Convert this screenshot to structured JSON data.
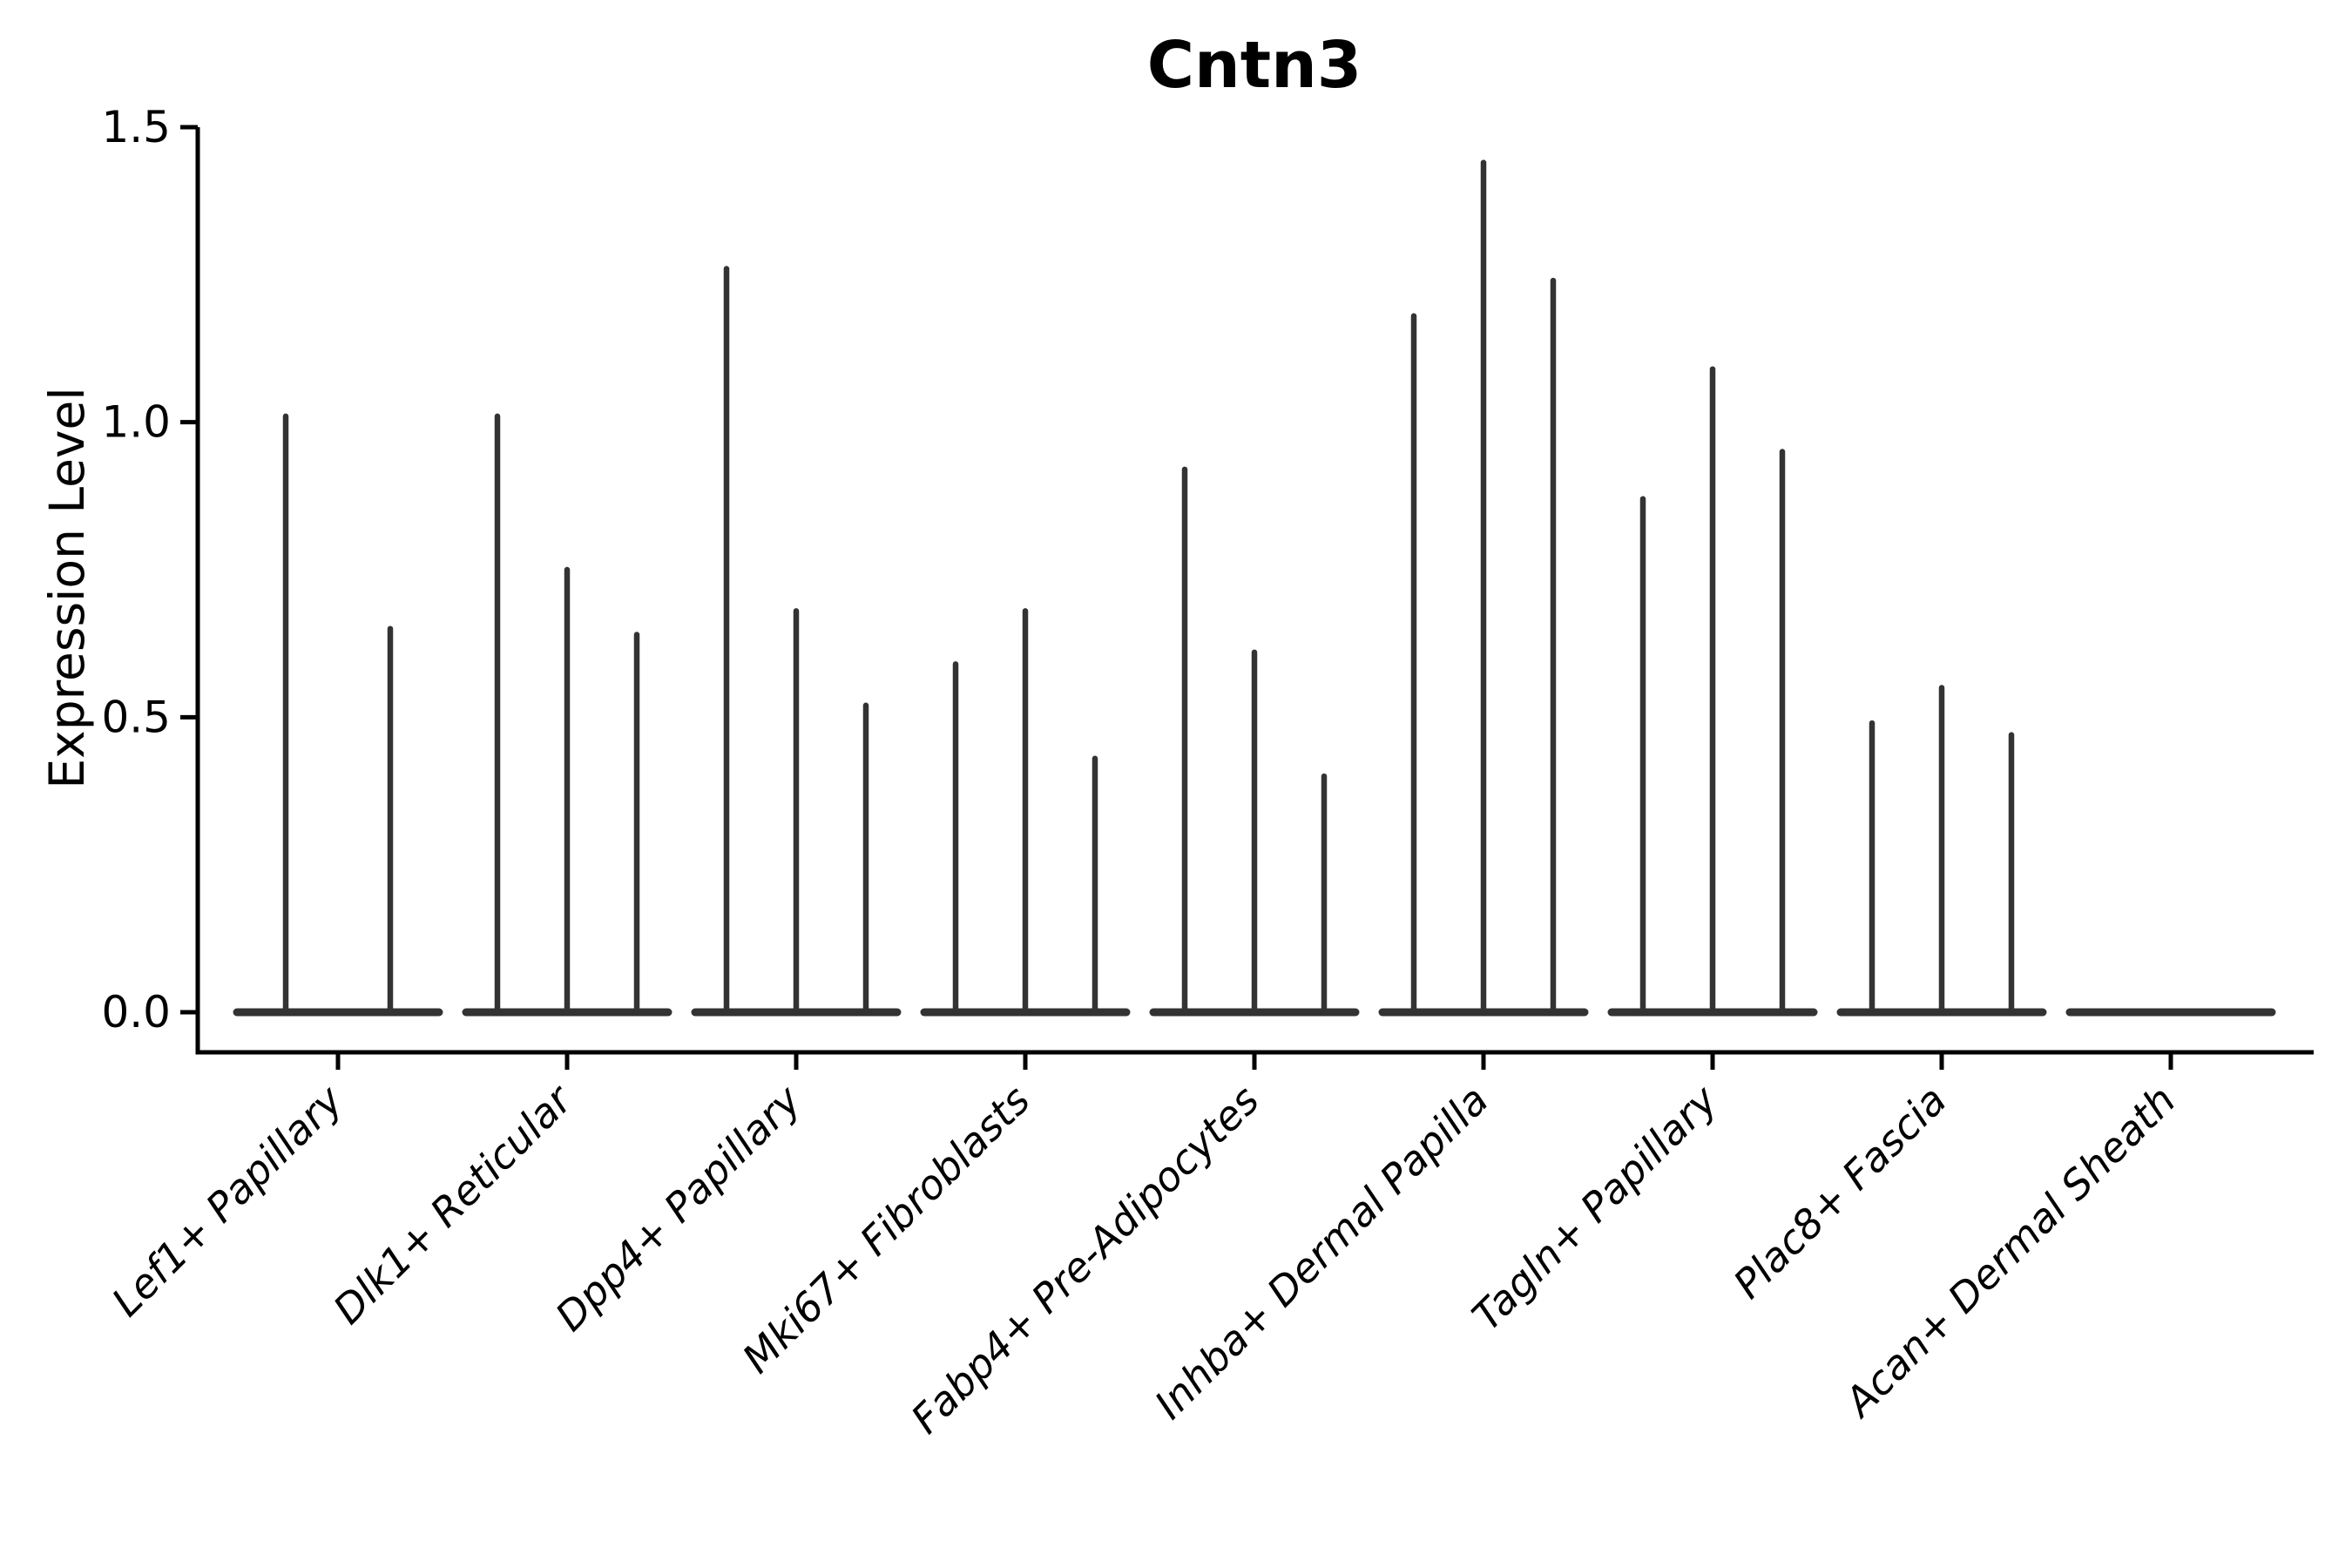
{
  "chart_data": {
    "type": "violin",
    "title": "Cntn3",
    "xlabel": "",
    "ylabel": "Expression Level",
    "ylim": [
      0,
      1.5
    ],
    "yticks": [
      0,
      0.5,
      1.0,
      1.5
    ],
    "ytick_labels": [
      "0.0",
      "0.5",
      "1.0",
      "1.5"
    ],
    "grid": false,
    "legend_position": "none",
    "x_tick_label_rotation_deg": 45,
    "x_tick_label_style": "italic",
    "violin_color": "#333333",
    "axis_color": "#000000",
    "background_color": "#ffffff",
    "description": "Violin plot of Cntn3 expression; each category shows narrow spike-like violins whose tips mark the maximum expression level, with a wide flat base at 0.",
    "categories": [
      "Lef1+ Papillary",
      "Dlk1+ Reticular",
      "Dpp4+ Papillary",
      "Mki67+ Fibroblasts",
      "Fabp4+ Pre-Adipocytes",
      "Inhba+ Dermal Papilla",
      "Tagln+ Papillary",
      "Plac8+ Fascia",
      "Acan+ Dermal Sheath"
    ],
    "series": [
      {
        "category": "Lef1+ Papillary",
        "violin_peak_values": [
          1.01,
          0.65
        ]
      },
      {
        "category": "Dlk1+ Reticular",
        "violin_peak_values": [
          1.01,
          0.75,
          0.64
        ]
      },
      {
        "category": "Dpp4+ Papillary",
        "violin_peak_values": [
          1.26,
          0.68,
          0.52
        ]
      },
      {
        "category": "Mki67+ Fibroblasts",
        "violin_peak_values": [
          0.59,
          0.68,
          0.43
        ]
      },
      {
        "category": "Fabp4+ Pre-Adipocytes",
        "violin_peak_values": [
          0.92,
          0.61,
          0.4
        ]
      },
      {
        "category": "Inhba+ Dermal Papilla",
        "violin_peak_values": [
          1.18,
          1.44,
          1.24
        ]
      },
      {
        "category": "Tagln+ Papillary",
        "violin_peak_values": [
          0.87,
          1.09,
          0.95
        ]
      },
      {
        "category": "Plac8+ Fascia",
        "violin_peak_values": [
          0.49,
          0.55,
          0.47
        ]
      },
      {
        "category": "Acan+ Dermal Sheath",
        "violin_peak_values": [
          0,
          0,
          0
        ]
      }
    ]
  }
}
